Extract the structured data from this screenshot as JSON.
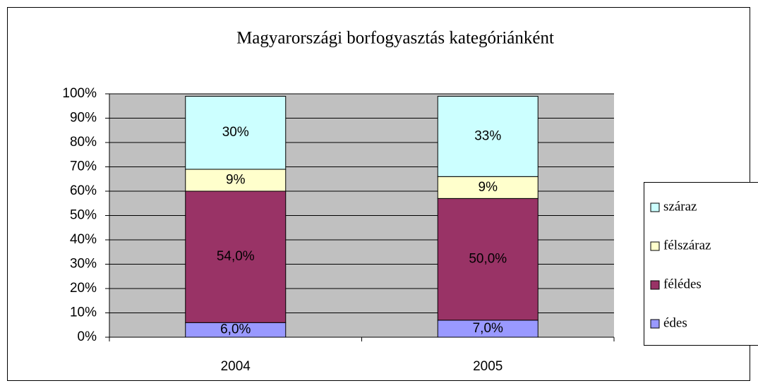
{
  "chart_data": {
    "type": "stacked_bar",
    "title": "Magyarországi borfogyasztás kategóriánként",
    "categories": [
      "2004",
      "2005"
    ],
    "series": [
      {
        "name": "édes",
        "color": "#9999ff",
        "values": [
          6,
          7
        ],
        "value_labels": [
          "6,0%",
          "7,0%"
        ]
      },
      {
        "name": "félédes",
        "color": "#993366",
        "values": [
          54,
          50
        ],
        "value_labels": [
          "54,0%",
          "50,0%"
        ]
      },
      {
        "name": "félszáraz",
        "color": "#ffffcc",
        "values": [
          9,
          9
        ],
        "value_labels": [
          "9%",
          "9%"
        ]
      },
      {
        "name": "száraz",
        "color": "#ccffff",
        "values": [
          30,
          33
        ],
        "value_labels": [
          "30%",
          "33%"
        ]
      }
    ],
    "ylim": [
      0,
      100
    ],
    "yticks": [
      {
        "value": 0,
        "label": "0%"
      },
      {
        "value": 10,
        "label": "10%"
      },
      {
        "value": 20,
        "label": "20%"
      },
      {
        "value": 30,
        "label": "30%"
      },
      {
        "value": 40,
        "label": "40%"
      },
      {
        "value": 50,
        "label": "50%"
      },
      {
        "value": 60,
        "label": "60%"
      },
      {
        "value": 70,
        "label": "70%"
      },
      {
        "value": 80,
        "label": "80%"
      },
      {
        "value": 90,
        "label": "90%"
      },
      {
        "value": 100,
        "label": "100%"
      }
    ],
    "grid": true,
    "legend": "right"
  }
}
